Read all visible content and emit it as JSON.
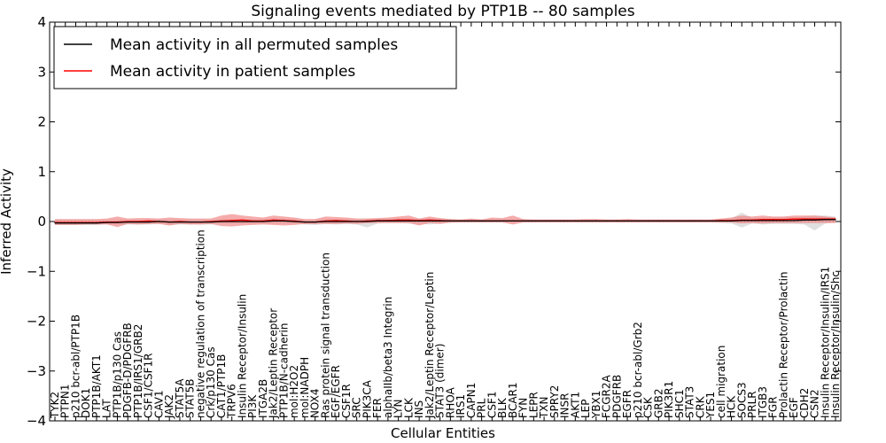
{
  "chart_data": {
    "type": "line",
    "title": "Signaling events mediated by PTP1B -- 80 samples",
    "xlabel": "Cellular Entities",
    "ylabel": "Inferred Activity",
    "ylim": [
      -4,
      4
    ],
    "yticks": [
      "4",
      "3",
      "2",
      "1",
      "0",
      "−1",
      "−2",
      "−3",
      "−4"
    ],
    "legend": {
      "placement": "top-left",
      "entries": [
        "Mean activity in all permuted samples",
        "Mean activity in patient samples"
      ]
    },
    "colors": {
      "permuted": "#000000",
      "patient": "#ff0000",
      "patient_band": "#f08080",
      "permuted_band": "#cccccc"
    },
    "categories": [
      "TYK2",
      "PTPN1",
      "p210 bcr-abl/PTP1B",
      "DOK1",
      "PTP1B/AKT1",
      "LAT",
      "PTP1B/p130 Cas",
      "PDGFB-D/PDGFRB",
      "PTP1B/IRS1/GRB2",
      "CSF1/CSF1R",
      "CAV1",
      "JAK2",
      "STAT5A",
      "STAT5B",
      "negative regulation of transcription",
      "Crk/p130 Cas",
      "CAT1/PTP1B",
      "TRPV6",
      "Insulin Receptor/Insulin",
      "PI3K",
      "ITGA2B",
      "Jak2/Leptin Receptor",
      "PTP1B/N-cadherin",
      "mol:H2O2",
      "mol:NADPH",
      "NOX4",
      "Ras protein signal transduction",
      "EGF/EGFR",
      "CSF1R",
      "SRC",
      "PIK3CA",
      "FER",
      "alphaIIb/beta3 Integrin",
      "LYN",
      "LCK",
      "INS",
      "Jak2/Leptin Receptor/Leptin",
      "STAT3 (dimer)",
      "RHOA",
      "IRS1",
      "CAPN1",
      "PRL",
      "CSF1",
      "BLK",
      "BCAR1",
      "FYN",
      "LEPR",
      "TXN",
      "SPRY2",
      "INSR",
      "AKT1",
      "LEP",
      "YBX1",
      "FCGR2A",
      "PDGFRB",
      "EGFR",
      "p210 bcr-abl/Grb2",
      "CSK",
      "GRB2",
      "PIK3R1",
      "SHC1",
      "STAT3",
      "CRK",
      "YES1",
      "cell migration",
      "HCK",
      "SOCS3",
      "PRLR",
      "ITGB3",
      "FGR",
      "Prolactin Receptor/Prolactin",
      "EGF",
      "CDH2",
      "CSN2",
      "Insulin Receptor/Insulin/IRS1",
      "Insulin Receptor/Insulin/Shc"
    ],
    "series": [
      {
        "name": "Mean activity in all permuted samples",
        "values": [
          -0.03,
          -0.03,
          -0.03,
          -0.03,
          -0.03,
          -0.02,
          -0.02,
          -0.01,
          -0.01,
          -0.01,
          0,
          -0.01,
          -0.01,
          -0.01,
          -0.01,
          -0.01,
          0,
          0,
          0,
          0,
          0,
          0.01,
          0.01,
          0,
          -0.01,
          -0.01,
          0,
          0,
          0,
          0,
          0,
          0.01,
          0.01,
          0.01,
          0.01,
          0.01,
          0.01,
          0.01,
          0.01,
          0.01,
          0.01,
          0.01,
          0.01,
          0.01,
          0.01,
          0.01,
          0.01,
          0.01,
          0.01,
          0.01,
          0.01,
          0.01,
          0.01,
          0.01,
          0.01,
          0.01,
          0.01,
          0.01,
          0.01,
          0.01,
          0.01,
          0.01,
          0.01,
          0.01,
          0.01,
          0.01,
          0.02,
          0.02,
          0.02,
          0.02,
          0.02,
          0.02,
          0.03,
          0.03,
          0.04,
          0.04
        ],
        "band_low": [
          -0.07,
          -0.07,
          -0.07,
          -0.07,
          -0.07,
          -0.06,
          -0.06,
          -0.06,
          -0.06,
          -0.06,
          -0.05,
          -0.07,
          -0.06,
          -0.06,
          -0.06,
          -0.06,
          -0.04,
          -0.04,
          -0.04,
          -0.04,
          -0.04,
          -0.04,
          -0.04,
          -0.04,
          -0.06,
          -0.07,
          -0.05,
          -0.06,
          -0.05,
          -0.06,
          -0.12,
          -0.04,
          -0.03,
          -0.03,
          -0.04,
          -0.04,
          -0.06,
          -0.04,
          -0.03,
          -0.02,
          -0.02,
          -0.02,
          -0.02,
          -0.02,
          -0.02,
          -0.02,
          -0.02,
          -0.02,
          -0.02,
          -0.02,
          -0.02,
          -0.02,
          -0.02,
          -0.02,
          -0.02,
          -0.02,
          -0.02,
          -0.02,
          -0.02,
          -0.02,
          -0.02,
          -0.02,
          -0.02,
          -0.02,
          -0.03,
          -0.04,
          -0.12,
          -0.04,
          -0.06,
          -0.05,
          -0.05,
          -0.05,
          -0.06,
          -0.18,
          -0.04,
          -0.02
        ],
        "band_high": [
          0.03,
          0.03,
          0.03,
          0.03,
          0.03,
          0.03,
          0.03,
          0.04,
          0.04,
          0.04,
          0.05,
          0.04,
          0.04,
          0.04,
          0.04,
          0.04,
          0.05,
          0.05,
          0.05,
          0.05,
          0.05,
          0.06,
          0.06,
          0.05,
          0.04,
          0.04,
          0.05,
          0.05,
          0.05,
          0.05,
          0.06,
          0.06,
          0.06,
          0.06,
          0.06,
          0.06,
          0.06,
          0.06,
          0.05,
          0.04,
          0.04,
          0.04,
          0.04,
          0.04,
          0.04,
          0.04,
          0.04,
          0.04,
          0.04,
          0.04,
          0.04,
          0.04,
          0.04,
          0.04,
          0.04,
          0.04,
          0.04,
          0.04,
          0.04,
          0.04,
          0.04,
          0.04,
          0.04,
          0.04,
          0.05,
          0.06,
          0.18,
          0.07,
          0.08,
          0.08,
          0.09,
          0.09,
          0.1,
          0.12,
          0.12,
          0.1
        ]
      },
      {
        "name": "Mean activity in patient samples",
        "values": [
          -0.02,
          -0.02,
          -0.02,
          -0.02,
          -0.02,
          -0.01,
          -0.01,
          0,
          0,
          0.01,
          0,
          -0.01,
          0,
          -0.01,
          -0.01,
          0,
          0.01,
          0.02,
          0.03,
          0.01,
          0.01,
          0.03,
          0.02,
          0.01,
          -0.01,
          -0.01,
          0.01,
          0.02,
          0.01,
          0,
          0.01,
          0.02,
          0.02,
          0.03,
          0.03,
          0.02,
          0.03,
          0.02,
          0.01,
          0.01,
          0.01,
          0.01,
          0.01,
          0.01,
          0.01,
          0.01,
          0.01,
          0.01,
          0.01,
          0.01,
          0.01,
          0.01,
          0.01,
          0.01,
          0.01,
          0.01,
          0.01,
          0.01,
          0.01,
          0.01,
          0.01,
          0.01,
          0.01,
          0.01,
          0.02,
          0.02,
          0.03,
          0.03,
          0.04,
          0.04,
          0.04,
          0.05,
          0.05,
          0.05,
          0.05,
          0.05
        ],
        "band_low": [
          -0.07,
          -0.07,
          -0.07,
          -0.06,
          -0.06,
          -0.06,
          -0.11,
          -0.05,
          -0.06,
          -0.05,
          -0.05,
          -0.08,
          -0.05,
          -0.06,
          -0.06,
          -0.05,
          -0.09,
          -0.1,
          -0.08,
          -0.07,
          -0.06,
          -0.07,
          -0.08,
          -0.07,
          -0.05,
          -0.05,
          -0.05,
          -0.05,
          -0.04,
          -0.05,
          -0.03,
          -0.03,
          -0.03,
          -0.03,
          -0.03,
          -0.08,
          -0.03,
          -0.05,
          -0.02,
          -0.02,
          -0.02,
          -0.02,
          -0.02,
          -0.02,
          -0.06,
          -0.02,
          -0.02,
          -0.02,
          -0.02,
          -0.02,
          -0.02,
          -0.02,
          -0.02,
          -0.02,
          -0.02,
          -0.02,
          -0.02,
          -0.02,
          -0.02,
          -0.02,
          -0.02,
          -0.02,
          -0.02,
          -0.02,
          -0.02,
          -0.02,
          -0.04,
          -0.03,
          -0.04,
          -0.03,
          -0.03,
          -0.03,
          -0.03,
          -0.03,
          -0.03,
          -0.03
        ],
        "band_high": [
          0.05,
          0.05,
          0.05,
          0.05,
          0.05,
          0.06,
          0.1,
          0.06,
          0.07,
          0.07,
          0.06,
          0.08,
          0.07,
          0.06,
          0.06,
          0.06,
          0.12,
          0.15,
          0.12,
          0.1,
          0.08,
          0.12,
          0.1,
          0.08,
          0.05,
          0.05,
          0.1,
          0.09,
          0.08,
          0.06,
          0.06,
          0.07,
          0.08,
          0.1,
          0.12,
          0.06,
          0.1,
          0.07,
          0.05,
          0.04,
          0.06,
          0.04,
          0.08,
          0.07,
          0.12,
          0.05,
          0.04,
          0.04,
          0.04,
          0.04,
          0.04,
          0.05,
          0.05,
          0.04,
          0.04,
          0.05,
          0.04,
          0.04,
          0.04,
          0.04,
          0.04,
          0.04,
          0.04,
          0.04,
          0.06,
          0.08,
          0.12,
          0.1,
          0.12,
          0.1,
          0.1,
          0.12,
          0.12,
          0.12,
          0.1,
          0.08
        ]
      }
    ]
  }
}
